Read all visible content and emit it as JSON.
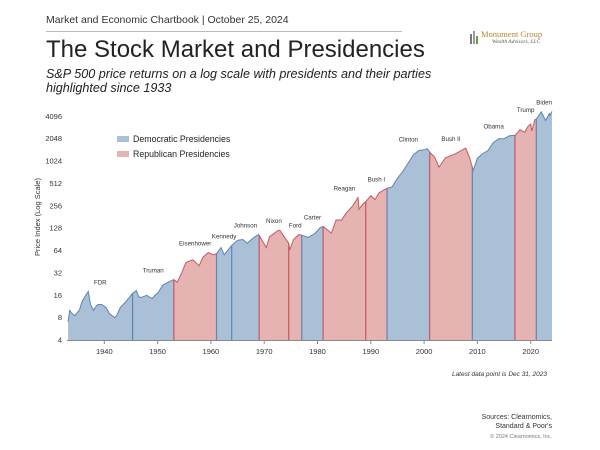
{
  "header": {
    "text": "Market and Economic Chartbook | October 25, 2024"
  },
  "logo": {
    "name": "Monument Group",
    "tagline": "Wealth Advisors, LLC"
  },
  "chart_data": {
    "type": "area",
    "title": "The Stock Market and Presidencies",
    "subtitle": "S&P 500 price returns on a log scale with presidents and their parties highlighted since 1933",
    "ylabel": "Price Index (Log Scale)",
    "xlabel": "",
    "yscale": "log2",
    "ylim": [
      4,
      6000
    ],
    "xlim": [
      1933,
      2024
    ],
    "yticks": [
      4,
      8,
      16,
      32,
      64,
      128,
      256,
      512,
      1024,
      2048,
      4096
    ],
    "xticks": [
      1940,
      1950,
      1960,
      1970,
      1980,
      1990,
      2000,
      2010,
      2020
    ],
    "grid": false,
    "legend": {
      "placement": "top-left",
      "entries": [
        {
          "label": "Democratic Presidencies",
          "color": "#a9c0d6"
        },
        {
          "label": "Republican Presidencies",
          "color": "#e6b3b3"
        }
      ]
    },
    "party_colors": {
      "Democratic": {
        "fill": "#a9c0d6",
        "line": "#5d86b0"
      },
      "Republican": {
        "fill": "#e6b3b3",
        "line": "#c8575c"
      }
    },
    "presidencies": [
      {
        "name": "FDR",
        "party": "Democratic",
        "start": 1933.2,
        "end": 1945.3
      },
      {
        "name": "Truman",
        "party": "Democratic",
        "start": 1945.3,
        "end": 1953.05
      },
      {
        "name": "Eisenhower",
        "party": "Republican",
        "start": 1953.05,
        "end": 1961.05
      },
      {
        "name": "Kennedy",
        "party": "Democratic",
        "start": 1961.05,
        "end": 1963.9
      },
      {
        "name": "Johnson",
        "party": "Democratic",
        "start": 1963.9,
        "end": 1969.05
      },
      {
        "name": "Nixon",
        "party": "Republican",
        "start": 1969.05,
        "end": 1974.6
      },
      {
        "name": "Ford",
        "party": "Republican",
        "start": 1974.6,
        "end": 1977.05
      },
      {
        "name": "Carter",
        "party": "Democratic",
        "start": 1977.05,
        "end": 1981.05
      },
      {
        "name": "Reagan",
        "party": "Republican",
        "start": 1981.05,
        "end": 1989.05
      },
      {
        "name": "Bush I",
        "party": "Republican",
        "start": 1989.05,
        "end": 1993.05
      },
      {
        "name": "Clinton",
        "party": "Democratic",
        "start": 1993.05,
        "end": 2001.05
      },
      {
        "name": "Bush II",
        "party": "Republican",
        "start": 2001.05,
        "end": 2009.05
      },
      {
        "name": "Obama",
        "party": "Democratic",
        "start": 2009.05,
        "end": 2017.05
      },
      {
        "name": "Trump",
        "party": "Republican",
        "start": 2017.05,
        "end": 2021.05
      },
      {
        "name": "Biden",
        "party": "Democratic",
        "start": 2021.05,
        "end": 2024.0
      }
    ],
    "series": [
      {
        "x": [
          1933.2,
          1933.5,
          1934.0,
          1934.5,
          1935.0,
          1935.3,
          1935.8,
          1936.5,
          1937.0,
          1937.4,
          1938.0,
          1938.3,
          1938.8,
          1939.5,
          1940.3,
          1941.0,
          1942.0,
          1942.3,
          1943.0,
          1944.0,
          1945.0,
          1945.3,
          1946.0,
          1946.5,
          1947.0,
          1948.0,
          1948.5,
          1949.0,
          1949.5,
          1950.0,
          1951.0,
          1952.0,
          1953.0,
          1953.05,
          1953.7,
          1954.5,
          1955.3,
          1955.9,
          1956.6,
          1957.8,
          1958.5,
          1959.5,
          1960.5,
          1961.05,
          1961.9,
          1962.5,
          1963.9,
          1965.0,
          1966.0,
          1966.8,
          1968.0,
          1968.9,
          1969.05,
          1970.4,
          1971.0,
          1972.5,
          1972.9,
          1974.6,
          1974.8,
          1975.5,
          1976.5,
          1977.05,
          1978.2,
          1979.5,
          1980.5,
          1981.05,
          1982.6,
          1983.5,
          1984.5,
          1985.5,
          1986.5,
          1987.6,
          1987.8,
          1988.5,
          1989.05,
          1990.0,
          1990.8,
          1991.5,
          1993.0,
          1993.05,
          1994.0,
          1995.0,
          1996.0,
          1997.0,
          1998.0,
          1999.0,
          2000.0,
          2000.6,
          2001.05,
          2002.0,
          2002.8,
          2004.0,
          2006.0,
          2007.8,
          2008.5,
          2009.05,
          2009.2,
          2010.0,
          2011.0,
          2012.0,
          2013.0,
          2014.0,
          2015.0,
          2016.0,
          2017.0,
          2017.05,
          2018.0,
          2018.9,
          2019.5,
          2020.0,
          2020.2,
          2020.8,
          2021.05,
          2022.0,
          2022.8,
          2023.5,
          2023.6,
          2024.0
        ],
        "y": [
          7,
          10,
          9,
          8.5,
          9.5,
          10,
          13,
          16,
          18,
          12,
          10,
          11,
          12,
          12,
          11,
          9,
          8,
          8.5,
          11,
          13,
          16,
          17,
          18.5,
          15,
          15,
          16,
          15,
          14.5,
          16,
          17,
          22,
          24,
          26,
          26,
          24,
          32,
          44,
          46,
          48,
          40,
          52,
          60,
          56,
          58,
          70,
          56,
          75,
          88,
          90,
          80,
          95,
          105,
          103,
          70,
          98,
          118,
          120,
          80,
          65,
          90,
          105,
          103,
          96,
          108,
          130,
          135,
          110,
          165,
          165,
          210,
          250,
          330,
          230,
          270,
          290,
          350,
          310,
          380,
          440,
          440,
          460,
          600,
          740,
          960,
          1240,
          1420,
          1450,
          1500,
          1350,
          1150,
          850,
          1130,
          1300,
          1530,
          1150,
          850,
          760,
          1120,
          1290,
          1420,
          1820,
          2050,
          2050,
          2240,
          2270,
          2270,
          2700,
          2500,
          3000,
          3230,
          2590,
          3700,
          3750,
          4700,
          3600,
          4450,
          4190,
          4770
        ]
      }
    ]
  },
  "footnote": "Latest data point is Dec 31, 2023",
  "sources": {
    "line1": "Sources: Clearnomics,",
    "line2": "Standard & Poor's"
  },
  "copyright": "© 2024 Clearnomics, Inc."
}
